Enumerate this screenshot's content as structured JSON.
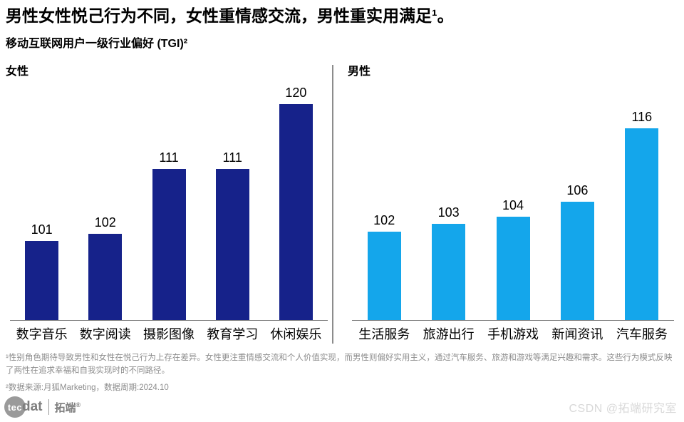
{
  "header": {
    "title": "男性女性悦己行为不同，女性重情感交流，男性重实用满足¹。",
    "subtitle": "移动互联网用户一级行业偏好 (TGI)²"
  },
  "chart_data": [
    {
      "type": "bar",
      "title": "女性",
      "categories": [
        "数字音乐",
        "数字阅读",
        "摄影图像",
        "教育学习",
        "休闲娱乐"
      ],
      "values": [
        101,
        102,
        111,
        111,
        120
      ],
      "bar_color": "#16228A",
      "ymin": 90,
      "ylim": [
        90,
        122
      ],
      "data_labels": true,
      "grid": false,
      "legend": false
    },
    {
      "type": "bar",
      "title": "男性",
      "categories": [
        "生活服务",
        "旅游出行",
        "手机游戏",
        "新闻资讯",
        "汽车服务"
      ],
      "values": [
        102,
        103,
        104,
        106,
        116
      ],
      "bar_color": "#14A6EB",
      "ymin": 90,
      "ylim": [
        90,
        118
      ],
      "data_labels": true,
      "grid": false,
      "legend": false
    }
  ],
  "footnotes": {
    "note1": "¹性别角色期待导致男性和女性在悦己行为上存在差异。女性更注重情感交流和个人价值实现，而男性则偏好实用主义，通过汽车服务、旅游和游戏等满足兴趣和需求。这些行为模式反映了两性在追求幸福和自我实现时的不同路径。",
    "note2": "²数据来源:月狐Marketing，数据周期:2024.10"
  },
  "footer": {
    "logo": {
      "circle_text": "tec",
      "suffix": "dat",
      "brand": "拓端",
      "registered": "®"
    },
    "watermark": "CSDN @拓端研究室"
  },
  "colors": {
    "female_bar": "#16228A",
    "male_bar": "#14A6EB",
    "divider": "#8C8C8C",
    "baseline": "#7F7F7F",
    "footnote_text": "#8C8C8C",
    "watermark": "#D8D8D8",
    "logo_gray": "#7D7D7D"
  }
}
